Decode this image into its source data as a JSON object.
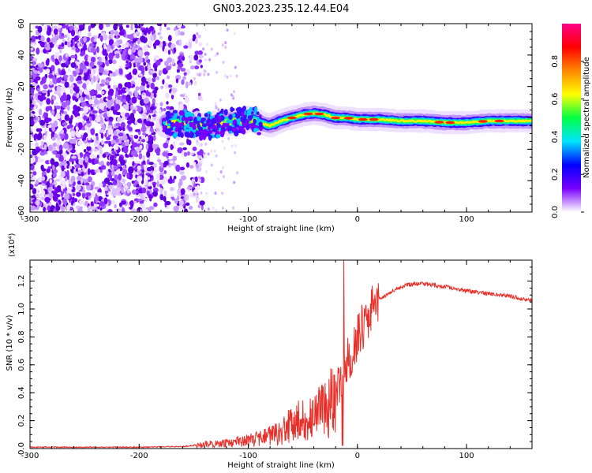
{
  "title": "GN03.2023.235.12.44.E04",
  "chart_data": [
    {
      "type": "heatmap",
      "xlabel": "Height of straight line (km)",
      "ylabel": "Frequency (Hz)",
      "xlim": [
        -300,
        160
      ],
      "ylim": [
        -60,
        60
      ],
      "x_ticks": [
        -300,
        -200,
        -100,
        0,
        100
      ],
      "y_ticks": [
        -60,
        -40,
        -20,
        0,
        20,
        40,
        60
      ],
      "colorbar": {
        "label": "Normalized spectral amplitude",
        "range": [
          0,
          1
        ],
        "ticks": [
          "0.0",
          "0.2",
          "0.4",
          "0.6",
          "0.8"
        ],
        "colors": [
          "#ffffff",
          "#7a00ff",
          "#0000ff",
          "#00e5ff",
          "#00ff44",
          "#ffff00",
          "#ff8800",
          "#ff0000",
          "#ff0088"
        ]
      },
      "noise_region": {
        "x_from": -300,
        "x_to": -150,
        "freq_range": [
          -60,
          60
        ]
      },
      "ridge": {
        "x": [
          -175,
          -160,
          -150,
          -140,
          -130,
          -120,
          -110,
          -100,
          -90,
          -80,
          -70,
          -60,
          -50,
          -40,
          -30,
          -20,
          -10,
          0,
          20,
          40,
          60,
          80,
          100,
          120,
          140,
          160
        ],
        "freq": [
          -4,
          -3,
          -5,
          -6,
          -4,
          -3,
          -2,
          -1,
          -3,
          -5,
          -2,
          0,
          2,
          3,
          2,
          0,
          0,
          -1,
          -1,
          -2,
          -2,
          -3,
          -3,
          -2,
          -2,
          -2
        ]
      }
    },
    {
      "type": "line",
      "xlabel": "Height of straight line (km)",
      "ylabel": "SNR (10 * v/v)",
      "y_multiplier": "(x10⁴)",
      "xlim": [
        -300,
        160
      ],
      "ylim": [
        0,
        1.35
      ],
      "x_ticks": [
        -300,
        -200,
        -100,
        0,
        100
      ],
      "y_ticks": [
        "0.0",
        "0.2",
        "0.4",
        "0.6",
        "0.8",
        "1.0",
        "1.2"
      ],
      "series": [
        {
          "color": "#e8302a",
          "x": [
            -300,
            -250,
            -200,
            -160,
            -150,
            -140,
            -120,
            -100,
            -90,
            -80,
            -70,
            -60,
            -50,
            -40,
            -30,
            -20,
            -10,
            0,
            10,
            20,
            30,
            40,
            50,
            60,
            80,
            100,
            120,
            140,
            160
          ],
          "y": [
            0.01,
            0.01,
            0.01,
            0.015,
            0.02,
            0.03,
            0.04,
            0.06,
            0.07,
            0.09,
            0.12,
            0.18,
            0.2,
            0.22,
            0.28,
            0.4,
            0.6,
            0.8,
            0.95,
            1.07,
            1.12,
            1.16,
            1.18,
            1.18,
            1.16,
            1.13,
            1.11,
            1.09,
            1.06
          ]
        }
      ]
    }
  ]
}
